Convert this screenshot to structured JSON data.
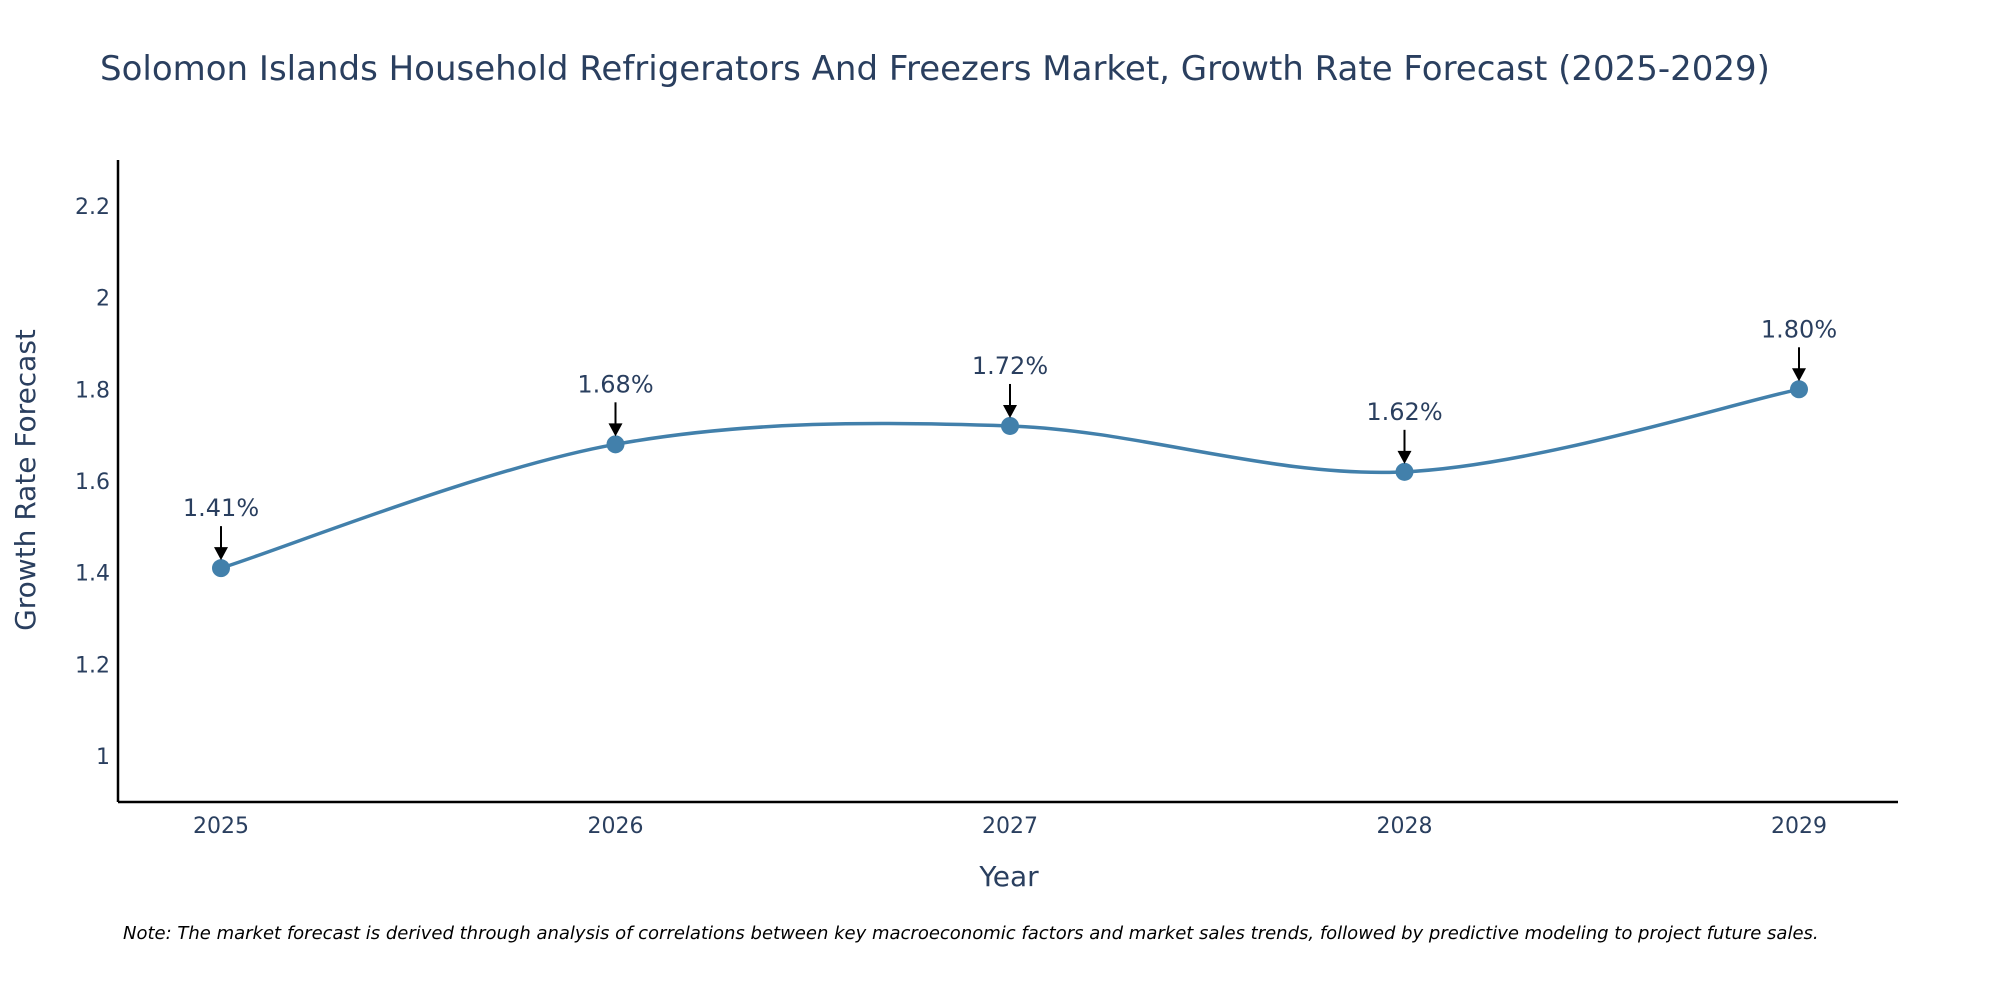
{
  "chart_data": {
    "type": "line",
    "title": "Solomon Islands Household Refrigerators And Freezers Market, Growth Rate Forecast (2025-2029)",
    "xlabel": "Year",
    "ylabel": "Growth Rate Forecast",
    "categories": [
      "2025",
      "2026",
      "2027",
      "2028",
      "2029"
    ],
    "series": [
      {
        "name": "Growth Rate Forecast",
        "values": [
          1.41,
          1.68,
          1.72,
          1.62,
          1.8
        ],
        "labels": [
          "1.41%",
          "1.68%",
          "1.72%",
          "1.62%",
          "1.80%"
        ],
        "color": "#4280ab"
      }
    ],
    "ylim": [
      0.9,
      2.3
    ],
    "yticks": [
      1,
      1.2,
      1.4,
      1.6,
      1.8,
      2,
      2.2
    ],
    "ytick_labels": [
      "1",
      "1.2",
      "1.4",
      "1.6",
      "1.8",
      "2",
      "2.2"
    ],
    "grid": false,
    "note": "Note: The market forecast is derived through analysis of correlations between key macroeconomic factors and market sales trends, followed by predictive modeling to project future sales."
  }
}
